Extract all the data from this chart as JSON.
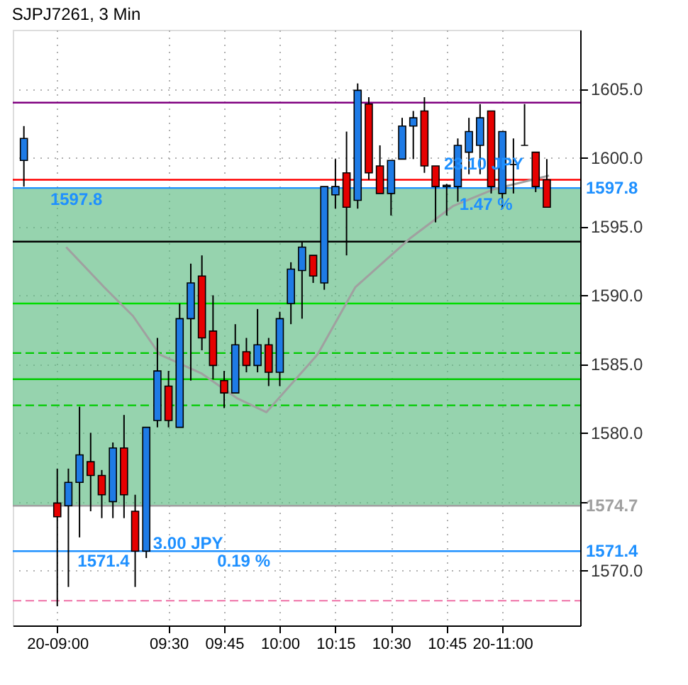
{
  "chart_data": {
    "type": "candlestick",
    "title": "SJPJ7261, 3 Min",
    "x": [
      8.85,
      9.0,
      9.05,
      9.1,
      9.15,
      9.2,
      9.25,
      9.3,
      9.35,
      9.4,
      9.45,
      9.5,
      9.55,
      9.6,
      9.65,
      9.7,
      9.75,
      9.8,
      9.85,
      9.9,
      9.95,
      10.0,
      10.05,
      10.1,
      10.15,
      10.2,
      10.25,
      10.3,
      10.35,
      10.4,
      10.45,
      10.5,
      10.55,
      10.6,
      10.65,
      10.7,
      10.75,
      10.8,
      10.85,
      10.9,
      10.95,
      11.0,
      11.05,
      11.1,
      11.15,
      11.2
    ],
    "ohlc": [
      [
        1599.8,
        1602.3,
        1597.9,
        1601.4
      ],
      [
        1574.9,
        1577.4,
        1567.4,
        1573.9
      ],
      [
        1574.7,
        1577.4,
        1568.8,
        1576.4
      ],
      [
        1576.4,
        1581.9,
        1572.4,
        1578.4
      ],
      [
        1577.9,
        1580.0,
        1574.3,
        1576.9
      ],
      [
        1576.9,
        1577.3,
        1573.8,
        1575.5
      ],
      [
        1575.0,
        1579.3,
        1573.8,
        1578.9
      ],
      [
        1578.9,
        1581.3,
        1573.8,
        1575.5
      ],
      [
        1574.3,
        1575.5,
        1568.8,
        1571.4
      ],
      [
        1571.4,
        1580.4,
        1570.9,
        1580.4
      ],
      [
        1580.9,
        1586.9,
        1580.4,
        1584.5
      ],
      [
        1583.4,
        1584.5,
        1580.4,
        1580.9
      ],
      [
        1580.4,
        1589.4,
        1580.4,
        1588.3
      ],
      [
        1588.3,
        1592.3,
        1583.8,
        1590.9
      ],
      [
        1591.4,
        1592.9,
        1586.0,
        1586.9
      ],
      [
        1587.4,
        1590.0,
        1583.9,
        1584.9
      ],
      [
        1583.8,
        1584.5,
        1581.8,
        1582.9
      ],
      [
        1582.9,
        1587.9,
        1582.9,
        1586.4
      ],
      [
        1585.9,
        1586.9,
        1584.4,
        1584.9
      ],
      [
        1584.9,
        1589.0,
        1584.4,
        1586.4
      ],
      [
        1586.4,
        1586.9,
        1583.4,
        1584.4
      ],
      [
        1584.4,
        1588.8,
        1583.4,
        1588.3
      ],
      [
        1589.4,
        1592.4,
        1587.9,
        1591.9
      ],
      [
        1591.8,
        1593.9,
        1588.3,
        1593.5
      ],
      [
        1592.9,
        1592.9,
        1590.9,
        1591.4
      ],
      [
        1590.9,
        1597.9,
        1590.4,
        1597.9
      ],
      [
        1597.3,
        1599.9,
        1596.3,
        1597.9
      ],
      [
        1598.9,
        1601.9,
        1592.9,
        1596.4
      ],
      [
        1596.9,
        1605.4,
        1596.3,
        1604.9
      ],
      [
        1603.9,
        1604.4,
        1598.4,
        1598.9
      ],
      [
        1599.4,
        1600.9,
        1597.4,
        1597.4
      ],
      [
        1597.4,
        1599.8,
        1595.8,
        1599.8
      ],
      [
        1599.9,
        1602.9,
        1599.9,
        1602.3
      ],
      [
        1602.3,
        1603.4,
        1599.9,
        1602.9
      ],
      [
        1603.4,
        1604.4,
        1598.9,
        1599.4
      ],
      [
        1599.4,
        1599.4,
        1595.3,
        1597.9
      ],
      [
        1597.9,
        1598.1,
        1595.8,
        1598.0
      ],
      [
        1597.9,
        1601.4,
        1596.8,
        1600.9
      ],
      [
        1600.4,
        1602.9,
        1598.8,
        1601.9
      ],
      [
        1600.9,
        1603.9,
        1598.8,
        1602.9
      ],
      [
        1603.4,
        1603.4,
        1597.4,
        1597.9
      ],
      [
        1597.4,
        1601.9,
        1596.3,
        1601.9
      ],
      [
        1599.5,
        1601.4,
        1597.4,
        1599.5
      ],
      [
        1600.9,
        1603.9,
        1600.9,
        1600.9
      ],
      [
        1600.4,
        1600.4,
        1597.5,
        1597.9
      ],
      [
        1598.4,
        1599.9,
        1596.4,
        1596.4
      ]
    ],
    "colors": [
      "#1e7be6",
      "#e60000",
      "#1e7be6",
      "#1e7be6",
      "#e60000",
      "#e60000",
      "#1e7be6",
      "#e60000",
      "#e60000",
      "#1e7be6",
      "#1e7be6",
      "#e60000",
      "#1e7be6",
      "#1e7be6",
      "#e60000",
      "#e60000",
      "#e60000",
      "#1e7be6",
      "#e60000",
      "#1e7be6",
      "#e60000",
      "#1e7be6",
      "#1e7be6",
      "#1e7be6",
      "#e60000",
      "#1e7be6",
      "#1e7be6",
      "#e60000",
      "#1e7be6",
      "#e60000",
      "#e60000",
      "#1e7be6",
      "#1e7be6",
      "#1e7be6",
      "#e60000",
      "#e60000",
      "#1e7be6",
      "#1e7be6",
      "#1e7be6",
      "#1e7be6",
      "#e60000",
      "#1e7be6",
      "#000000",
      "#000000",
      "#e60000",
      "#e60000"
    ],
    "series": [
      {
        "type": "line",
        "color": "#a0a0a0",
        "x": [
          9.04,
          9.21,
          9.34,
          9.46,
          9.65,
          9.81,
          9.94,
          10.17,
          10.34,
          10.59,
          10.78,
          10.96,
          11.21
        ],
        "values": [
          1593.5,
          1590.6,
          1588.5,
          1585.7,
          1584.3,
          1582.5,
          1581.5,
          1585.7,
          1590.6,
          1594.2,
          1596.5,
          1597.7,
          1598.7
        ]
      }
    ],
    "xlim": [
      8.8,
      11.35
    ],
    "xticks": [
      {
        "value": 9.0,
        "label": "20-09:00"
      },
      {
        "value": 9.5,
        "label": "09:30"
      },
      {
        "value": 9.75,
        "label": "09:45"
      },
      {
        "value": 10.0,
        "label": "10:00"
      },
      {
        "value": 10.25,
        "label": "10:15"
      },
      {
        "value": 10.5,
        "label": "10:30"
      },
      {
        "value": 10.75,
        "label": "10:45"
      },
      {
        "value": 11.0,
        "label": "20-11:00"
      }
    ],
    "ylim": [
      1566.0,
      1609.3
    ],
    "yticks": [
      {
        "value": 1570,
        "label": "1570.0"
      },
      {
        "value": 1575,
        "label": null
      },
      {
        "value": 1580,
        "label": "1580.0"
      },
      {
        "value": 1585,
        "label": "1585.0"
      },
      {
        "value": 1590,
        "label": "1590.0"
      },
      {
        "value": 1595,
        "label": "1595.0"
      },
      {
        "value": 1600,
        "label": "1600.0"
      },
      {
        "value": 1605,
        "label": "1605.0"
      }
    ],
    "grid": true,
    "line_style": "solid",
    "bands": [
      {
        "axis": "y",
        "from": 1574.7,
        "to": 1597.8,
        "color": "#5dbb82"
      }
    ],
    "ref_lines": [
      {
        "axis": "y",
        "value": 1604.0,
        "color": "#800080"
      },
      {
        "axis": "y",
        "value": 1598.4,
        "color": "#ff0000"
      },
      {
        "axis": "y",
        "value": 1597.8,
        "label": "1597.8",
        "color": "#1e90ff"
      },
      {
        "axis": "y",
        "value": 1593.9,
        "color": "#000000"
      },
      {
        "axis": "y",
        "value": 1589.4,
        "color": "#00dd00"
      },
      {
        "axis": "y",
        "value": 1585.8,
        "color": "#00cc00",
        "line_style": "dashed"
      },
      {
        "axis": "y",
        "value": 1583.9,
        "color": "#00cc00"
      },
      {
        "axis": "y",
        "value": 1582.0,
        "color": "#00cc00",
        "line_style": "dashed"
      },
      {
        "axis": "y",
        "value": 1574.7,
        "label": "1574.7",
        "color": "#a0a0a0"
      },
      {
        "axis": "y",
        "value": 1571.4,
        "label": "1571.4",
        "color": "#1e90ff"
      },
      {
        "axis": "y",
        "value": 1567.8,
        "color": "#f080b0",
        "line_style": "dashed"
      }
    ],
    "annotations": [
      "1597.8",
      "23.10 JPY",
      "1.47 %",
      "3.00 JPY",
      "0.19 %",
      "1571.4"
    ]
  }
}
